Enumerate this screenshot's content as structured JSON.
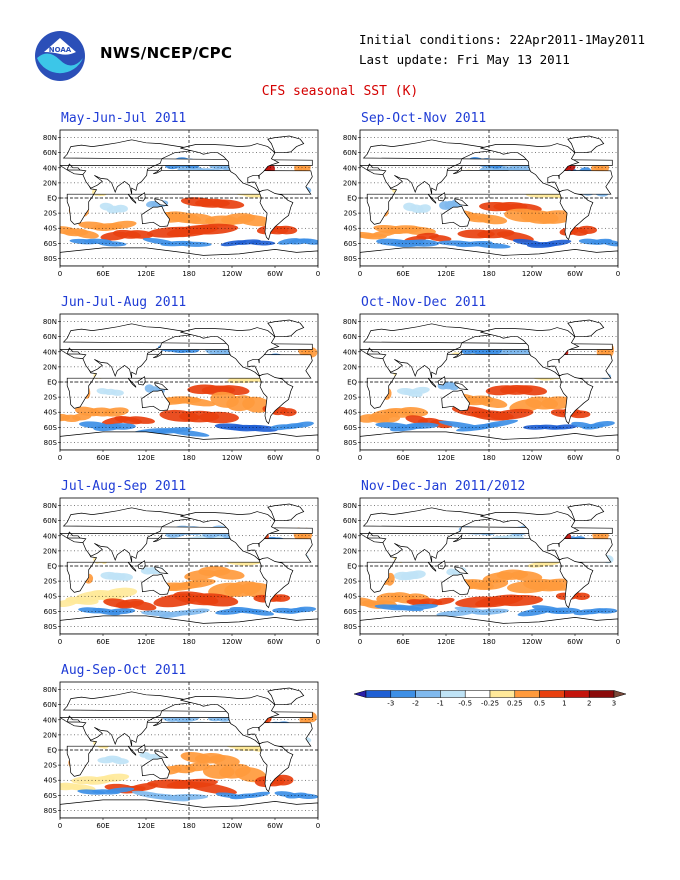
{
  "header": {
    "org": "NWS/NCEP/CPC",
    "initial_conditions": "Initial conditions: 22Apr2011-1May2011",
    "last_update": "Last update: Fri May 13 2011",
    "title": "CFS seasonal SST (K)",
    "logo_text": "NOAA"
  },
  "axes": {
    "lat_labels": [
      "80N",
      "60N",
      "40N",
      "20N",
      "EQ",
      "20S",
      "40S",
      "60S",
      "80S"
    ],
    "lon_labels": [
      "0",
      "60E",
      "120E",
      "180",
      "120W",
      "60W",
      "0"
    ]
  },
  "panels": [
    {
      "title": "May-Jun-Jul 2011"
    },
    {
      "title": "Sep-Oct-Nov 2011"
    },
    {
      "title": "Jun-Jul-Aug 2011"
    },
    {
      "title": "Oct-Nov-Dec 2011"
    },
    {
      "title": "Jul-Aug-Sep 2011"
    },
    {
      "title": "Nov-Dec-Jan 2011/2012"
    },
    {
      "title": "Aug-Sep-Oct 2011"
    }
  ],
  "colorbar": {
    "ticks": [
      "-3",
      "-2",
      "-1",
      "-0.5",
      "-0.25",
      "0.25",
      "0.5",
      "1",
      "2",
      "3"
    ],
    "colors": [
      "#2a1fa8",
      "#1f5fd4",
      "#3d8fe6",
      "#7fb9ee",
      "#bfe3f6",
      "#ffffff",
      "#ffe99a",
      "#ff9a3c",
      "#e8400f",
      "#c4140c",
      "#8b0a0a",
      "#7a4a3a"
    ]
  }
}
